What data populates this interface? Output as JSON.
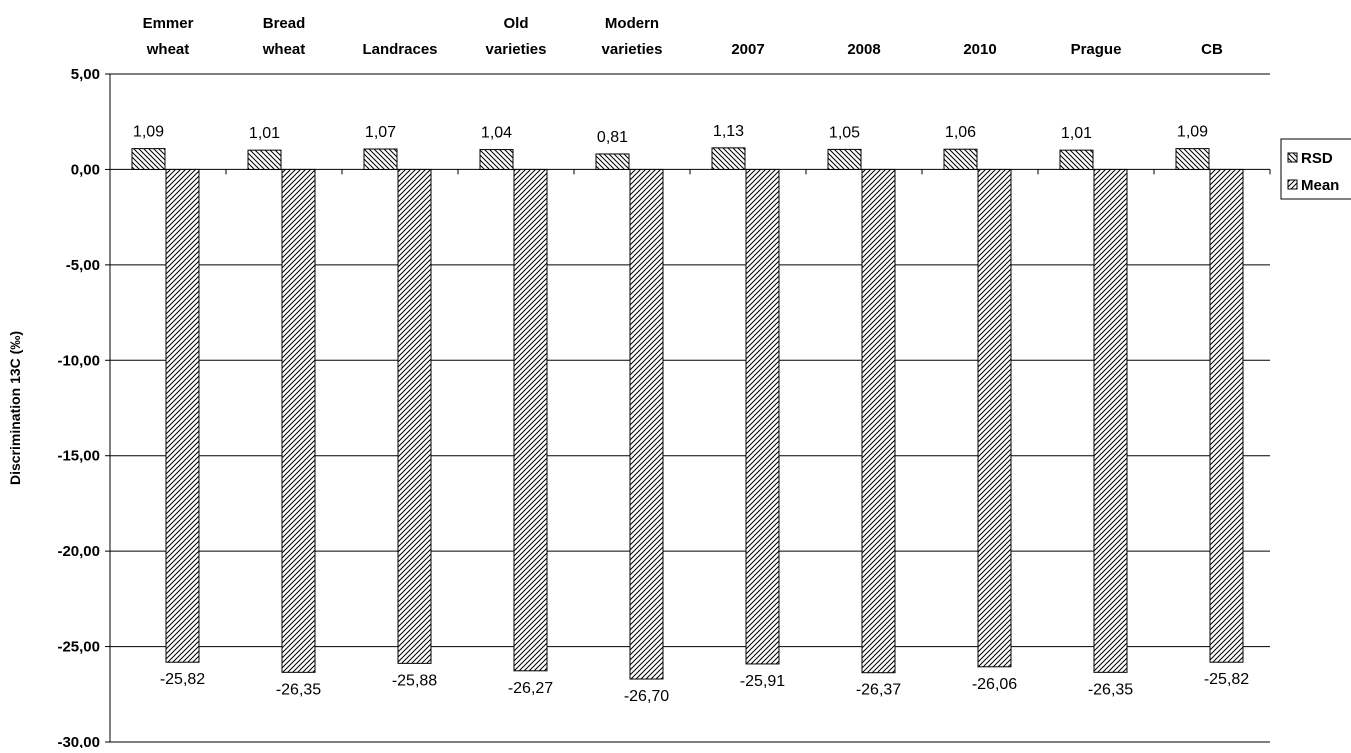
{
  "chart_data": {
    "type": "bar",
    "title": "",
    "xlabel": "",
    "ylabel": "Discrimination 13C (‰)",
    "ylim": [
      -30,
      5
    ],
    "yticks": [
      5,
      0,
      -5,
      -10,
      -15,
      -20,
      -25,
      -30
    ],
    "ytick_labels": [
      "5,00",
      "0,00",
      "-5,00",
      "-10,00",
      "-15,00",
      "-20,00",
      "-25,00",
      "-30,00"
    ],
    "grid": true,
    "legend_position": "right",
    "categories": [
      [
        "Emmer",
        "wheat"
      ],
      [
        "Bread",
        "wheat"
      ],
      [
        "Landraces"
      ],
      [
        "Old",
        "varieties"
      ],
      [
        "Modern",
        "varieties"
      ],
      [
        "2007"
      ],
      [
        "2008"
      ],
      [
        "2010"
      ],
      [
        "Prague"
      ],
      [
        "CB"
      ]
    ],
    "series": [
      {
        "name": "RSD",
        "values": [
          1.09,
          1.01,
          1.07,
          1.04,
          0.81,
          1.13,
          1.05,
          1.06,
          1.01,
          1.09
        ],
        "labels": [
          "1,09",
          "1,01",
          "1,07",
          "1,04",
          "0,81",
          "1,13",
          "1,05",
          "1,06",
          "1,01",
          "1,09"
        ],
        "pattern": "backslash-hatch"
      },
      {
        "name": "Mean",
        "values": [
          -25.82,
          -26.35,
          -25.88,
          -26.27,
          -26.7,
          -25.91,
          -26.37,
          -26.06,
          -26.35,
          -25.82
        ],
        "labels": [
          "-25,82",
          "-26,35",
          "-25,88",
          "-26,27",
          "-26,70",
          "-25,91",
          "-26,37",
          "-26,06",
          "-26,35",
          "-25,82"
        ],
        "pattern": "slash-hatch"
      }
    ]
  }
}
